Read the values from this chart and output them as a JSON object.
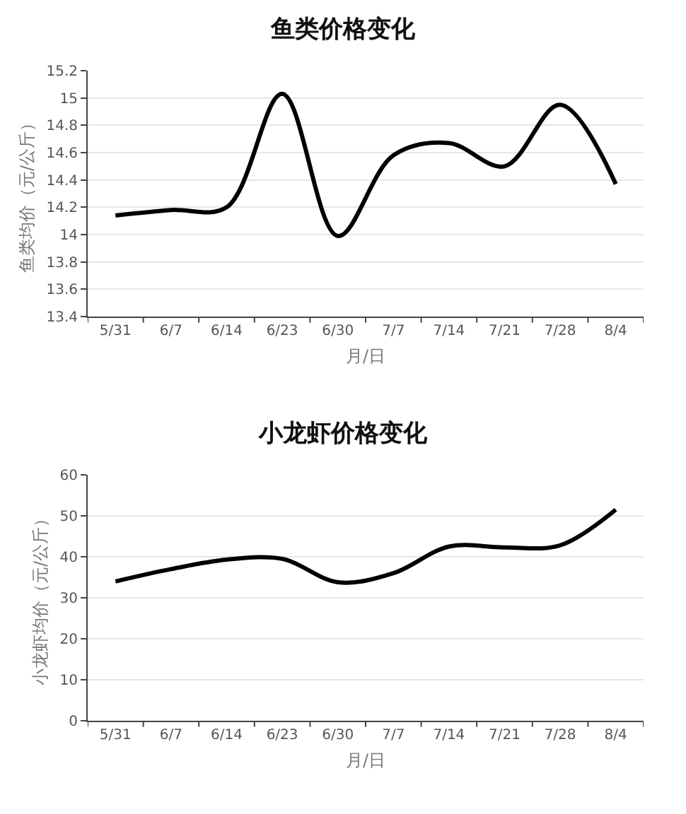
{
  "chart_data": [
    {
      "type": "line",
      "title": "鱼类价格变化",
      "xlabel": "月/日",
      "ylabel": "鱼类均价（元/公斤）",
      "categories": [
        "5/31",
        "6/7",
        "6/14",
        "6/23",
        "6/30",
        "7/7",
        "7/14",
        "7/21",
        "7/28",
        "8/4"
      ],
      "series": [
        {
          "color": "#000000",
          "values": [
            14.14,
            14.18,
            14.2,
            15.03,
            13.99,
            14.58,
            14.67,
            14.5,
            14.95,
            14.37
          ]
        }
      ],
      "ylim": [
        13.4,
        15.2
      ],
      "yticks": [
        13.4,
        13.6,
        13.8,
        14,
        14.2,
        14.4,
        14.6,
        14.8,
        15,
        15.2
      ],
      "grid": "y",
      "marker": "none",
      "line_style": "solid"
    },
    {
      "type": "line",
      "title": "小龙虾价格变化",
      "xlabel": "月/日",
      "ylabel": "小龙虾均价（元/公斤）",
      "categories": [
        "5/31",
        "6/7",
        "6/14",
        "6/23",
        "6/30",
        "7/7",
        "7/14",
        "7/21",
        "7/28",
        "8/4"
      ],
      "series": [
        {
          "color": "#000000",
          "values": [
            34,
            37,
            39.3,
            39.5,
            33.8,
            36,
            42.5,
            42.3,
            42.8,
            51.5
          ]
        }
      ],
      "ylim": [
        0,
        60
      ],
      "yticks": [
        0,
        10,
        20,
        30,
        40,
        50,
        60
      ],
      "grid": "y",
      "marker": "none",
      "line_style": "solid"
    }
  ]
}
